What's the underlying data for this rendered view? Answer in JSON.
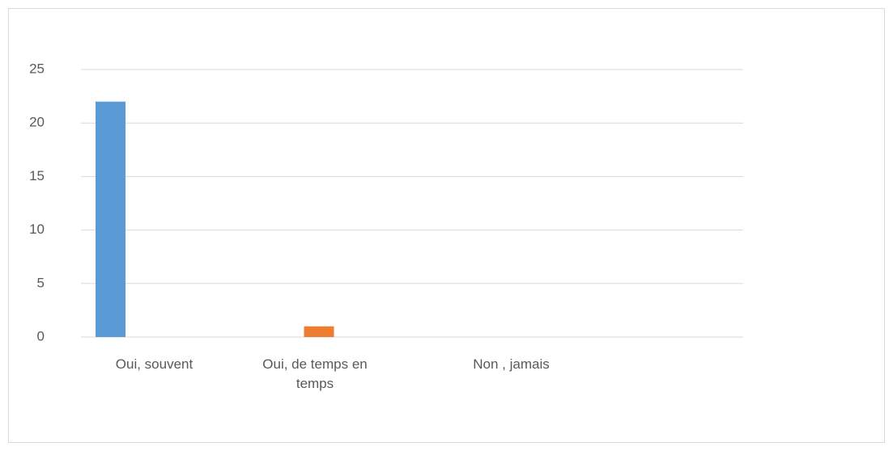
{
  "chart_data": {
    "type": "bar",
    "categories": [
      "Oui, souvent",
      "Oui, de temps en temps",
      "Non , jamais",
      null
    ],
    "values": [
      22,
      1,
      0,
      null
    ],
    "colors": [
      "#5b9bd5",
      "#ed7d31",
      "#a5a5a5"
    ],
    "ylim": [
      0,
      25
    ],
    "yticks": [
      0,
      5,
      10,
      15,
      20,
      25
    ],
    "grid": true
  }
}
